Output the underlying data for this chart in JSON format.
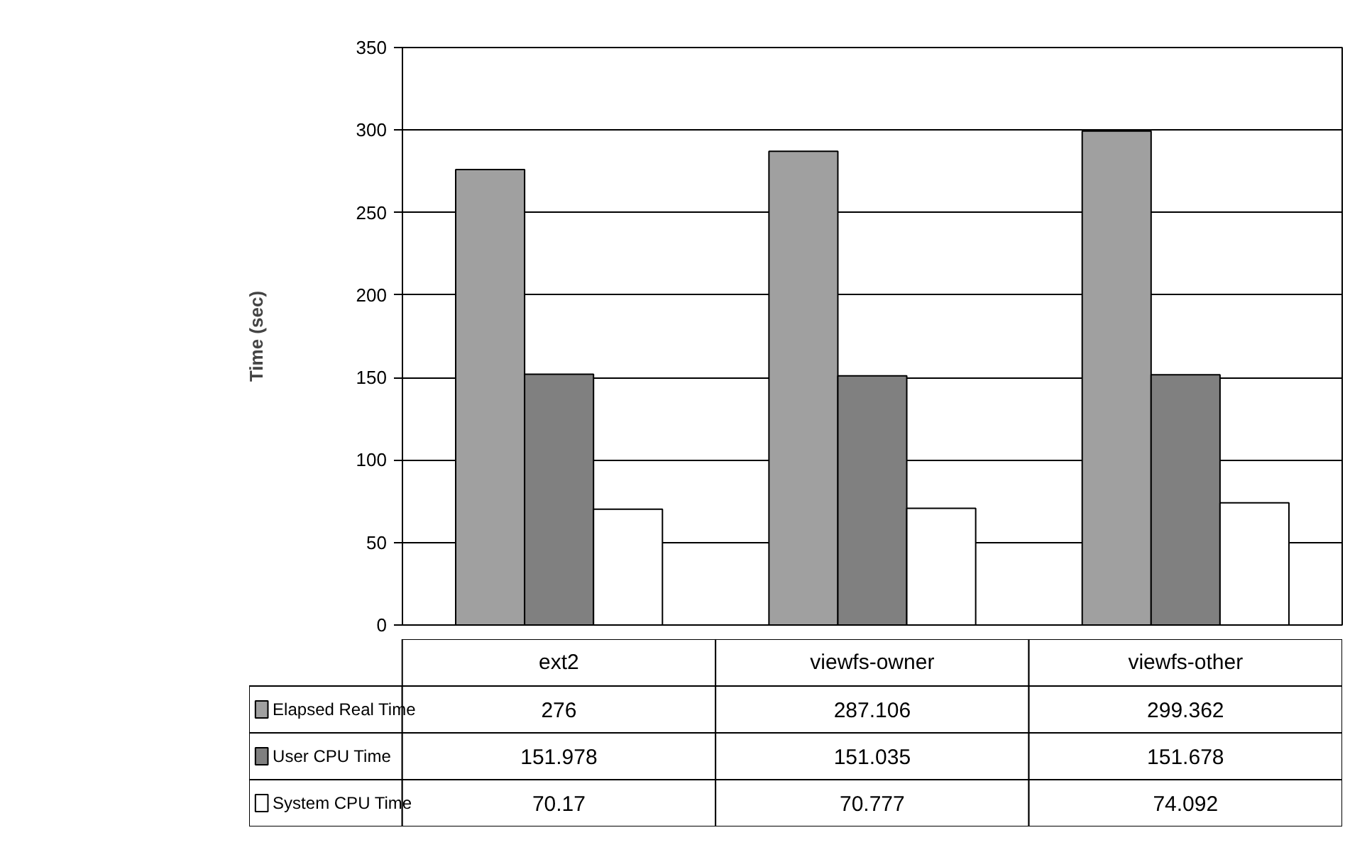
{
  "chart_data": {
    "type": "bar",
    "ylabel": "Time (sec)",
    "categories": [
      "ext2",
      "viewfs-owner",
      "viewfs-other"
    ],
    "series": [
      {
        "name": "Elapsed Real Time",
        "color": "#a0a0a0",
        "values": [
          276,
          287.106,
          299.362
        ]
      },
      {
        "name": "User CPU Time",
        "color": "#808080",
        "values": [
          151.978,
          151.035,
          151.678
        ]
      },
      {
        "name": "System CPU Time",
        "color": "#ffffff",
        "values": [
          70.17,
          70.777,
          74.092
        ]
      }
    ],
    "ylim": [
      0,
      350
    ],
    "yticks": [
      0,
      50,
      100,
      150,
      200,
      250,
      300,
      350
    ],
    "grid": "y",
    "legend": "bottom",
    "data_labels": true
  }
}
